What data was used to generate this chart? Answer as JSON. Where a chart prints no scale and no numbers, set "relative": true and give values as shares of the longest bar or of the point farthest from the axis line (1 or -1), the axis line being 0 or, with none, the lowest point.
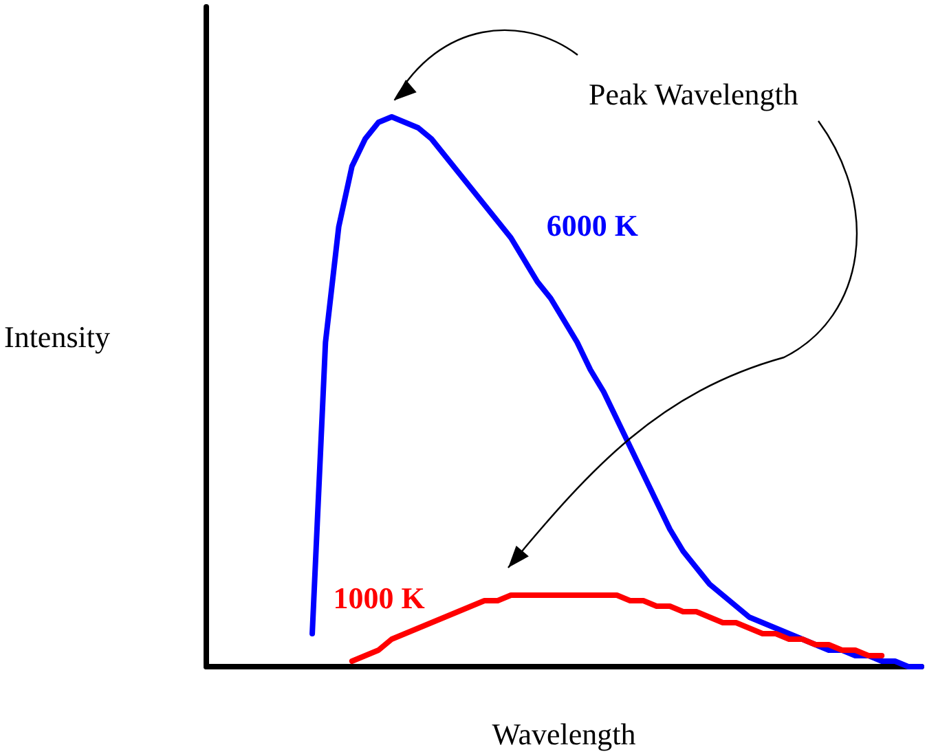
{
  "chart_data": {
    "type": "line",
    "relative": true,
    "xlabel": "Wavelength",
    "ylabel": "Intensity",
    "legend": false,
    "grid": false,
    "marker": "none",
    "line_style": "solid",
    "categories": [
      null,
      null,
      null,
      null,
      null,
      null,
      null,
      null,
      null,
      null,
      null,
      null,
      null,
      null,
      null,
      null,
      null,
      null,
      null,
      null,
      null,
      null,
      null,
      null,
      null,
      null,
      null,
      null,
      null,
      null,
      null,
      null,
      null,
      null,
      null,
      null,
      null,
      null,
      null,
      null,
      null,
      null,
      null,
      null,
      null,
      null,
      null,
      null,
      null,
      null,
      null,
      null,
      null,
      null,
      null
    ],
    "series": [
      {
        "name": "6000 K",
        "color": "#0000ff",
        "values": [
          null,
          null,
          null,
          null,
          null,
          null,
          null,
          null,
          0.06,
          0.59,
          0.8,
          0.91,
          0.96,
          0.99,
          1,
          0.99,
          0.98,
          0.96,
          0.93,
          0.9,
          0.87,
          0.84,
          0.81,
          0.78,
          0.74,
          0.7,
          0.67,
          0.63,
          0.59,
          0.54,
          0.5,
          0.45,
          0.4,
          0.35,
          0.3,
          0.25,
          0.21,
          0.18,
          0.15,
          0.13,
          0.11,
          0.09,
          0.08,
          0.07,
          0.06,
          0.05,
          0.04,
          0.03,
          0.03,
          0.02,
          0.02,
          0.01,
          0.01,
          0.0,
          0
        ]
      },
      {
        "name": "1000 K",
        "color": "#ff0000",
        "values": [
          null,
          null,
          null,
          null,
          null,
          null,
          null,
          null,
          null,
          null,
          null,
          0.01,
          0.02,
          0.03,
          0.05,
          0.06,
          0.07,
          0.08,
          0.09,
          0.1,
          0.11,
          0.12,
          0.12,
          0.13,
          0.13,
          0.13,
          0.13,
          0.13,
          0.13,
          0.13,
          0.13,
          0.13,
          0.12,
          0.12,
          0.11,
          0.11,
          0.1,
          0.1,
          0.09,
          0.08,
          0.08,
          0.07,
          0.06,
          0.06,
          0.05,
          0.05,
          0.04,
          0.04,
          0.03,
          0.03,
          0.02,
          0.02,
          null,
          null,
          null
        ]
      }
    ],
    "annotations": [
      "Peak Wavelength"
    ]
  }
}
